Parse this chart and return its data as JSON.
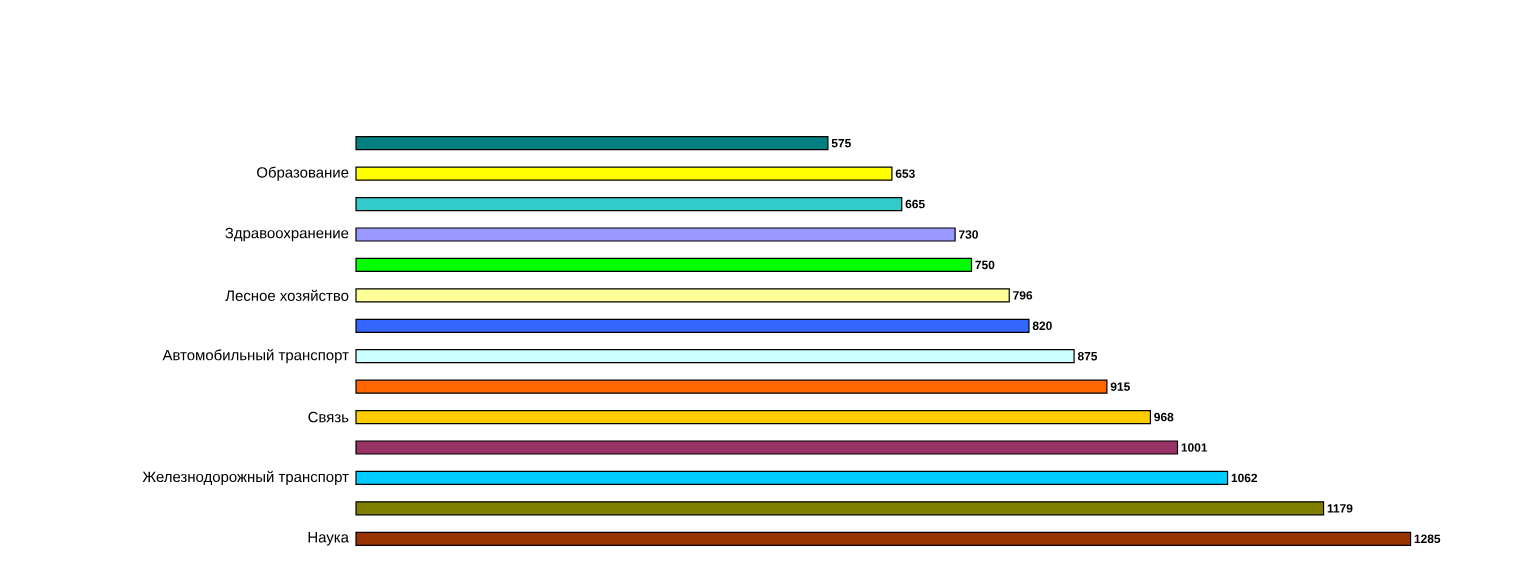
{
  "chart_data": {
    "type": "bar",
    "orientation": "horizontal",
    "data_labels": true,
    "categories": [
      null,
      "Образование",
      null,
      "Здравоохранение",
      null,
      "Лесное хозяйство",
      null,
      "Автомобильный транспорт",
      null,
      "Связь",
      null,
      "Железнодорожный транспорт",
      null,
      "Наука"
    ],
    "values": [
      575,
      653,
      665,
      730,
      750,
      796,
      820,
      875,
      915,
      968,
      1001,
      1062,
      1179,
      1285
    ],
    "colors": [
      "#008080",
      "#ffff00",
      "#33cccc",
      "#9999ff",
      "#00ff00",
      "#ffff99",
      "#3366ff",
      "#ccffff",
      "#ff6600",
      "#ffcc00",
      "#993366",
      "#00ccff",
      "#808000",
      "#993300"
    ]
  }
}
